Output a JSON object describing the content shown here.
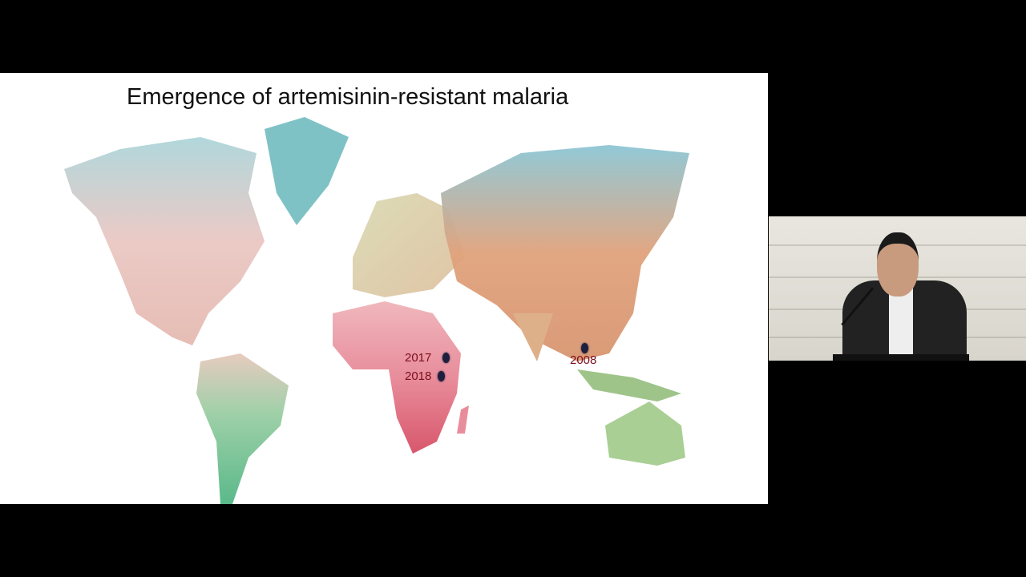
{
  "slide": {
    "title": "Emergence of artemisinin-resistant malaria",
    "markers": [
      {
        "year": "2017",
        "region": "East Africa",
        "icon": "starburst-marker-icon",
        "color": "#1e1f3f"
      },
      {
        "year": "2018",
        "region": "East Africa",
        "icon": "starburst-marker-icon",
        "color": "#1e1f3f"
      },
      {
        "year": "2008",
        "region": "Southeast Asia",
        "icon": "starburst-marker-icon",
        "color": "#1e1f3f"
      }
    ],
    "label_color": "#7a0f1e"
  },
  "speaker_video": {
    "description_icon": "speaker-video-feed"
  }
}
